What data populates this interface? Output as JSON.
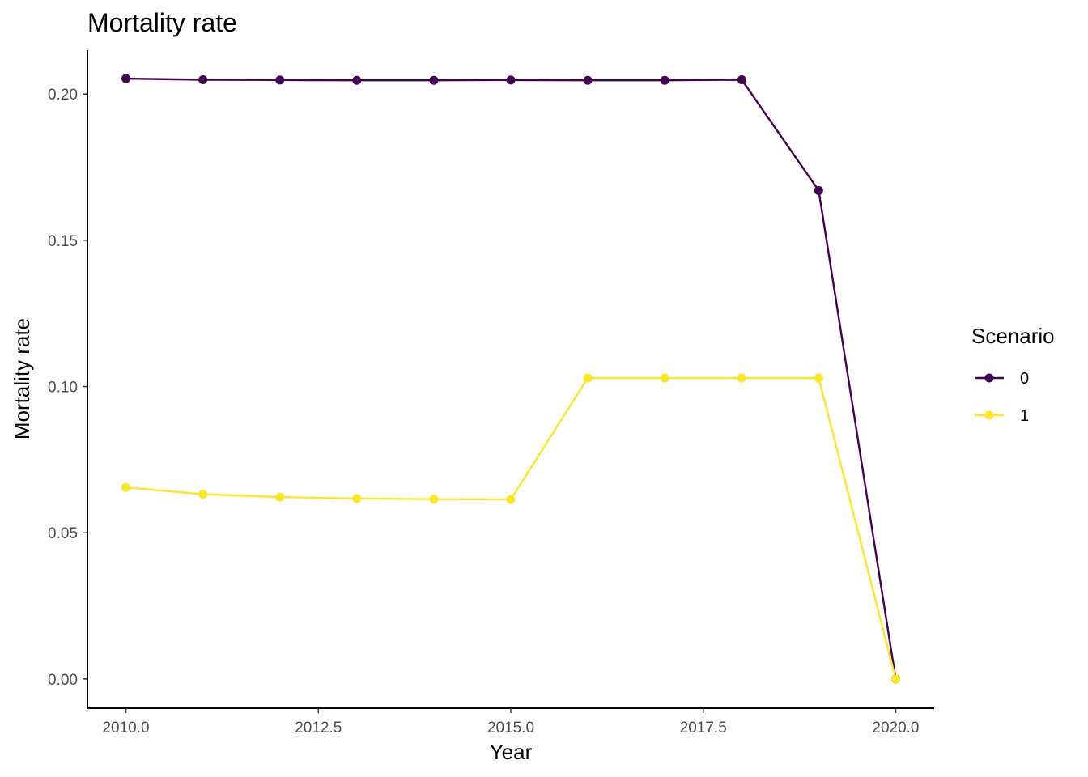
{
  "chart_data": {
    "type": "line",
    "title": "Mortality rate",
    "xlabel": "Year",
    "ylabel": "Mortality rate",
    "x": [
      2010,
      2011,
      2012,
      2013,
      2014,
      2015,
      2016,
      2017,
      2018,
      2019,
      2020
    ],
    "xlim": [
      2009.5,
      2020.5
    ],
    "ylim": [
      -0.01,
      0.215
    ],
    "xticks": [
      2010.0,
      2012.5,
      2015.0,
      2017.5,
      2020.0
    ],
    "xtick_labels": [
      "2010.0",
      "2012.5",
      "2015.0",
      "2017.5",
      "2020.0"
    ],
    "yticks": [
      0.0,
      0.05,
      0.1,
      0.15,
      0.2
    ],
    "ytick_labels": [
      "0.00",
      "0.05",
      "0.10",
      "0.15",
      "0.20"
    ],
    "grid": false,
    "legend": {
      "title": "Scenario",
      "placement": "right"
    },
    "series": [
      {
        "name": "0",
        "color": "#440154",
        "values": [
          0.2053,
          0.2049,
          0.2048,
          0.2047,
          0.2047,
          0.2048,
          0.2047,
          0.2047,
          0.2049,
          0.167,
          0.0
        ]
      },
      {
        "name": "1",
        "color": "#FDE725",
        "values": [
          0.0655,
          0.0632,
          0.0622,
          0.0617,
          0.0615,
          0.0614,
          0.1029,
          0.1029,
          0.1029,
          0.1029,
          0.0
        ]
      }
    ]
  }
}
